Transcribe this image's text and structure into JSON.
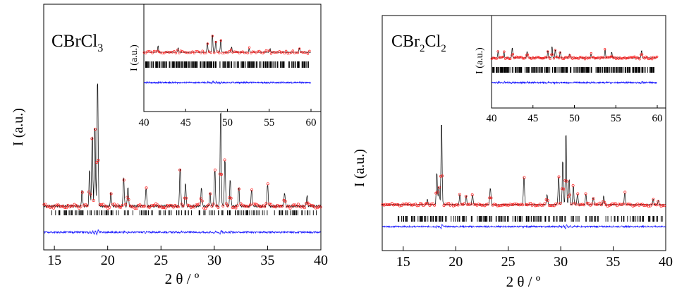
{
  "colors": {
    "observed": "#ff2020",
    "calculated": "#000000",
    "difference": "#1a1aff",
    "ticks": "#000000"
  },
  "chart_data": [
    {
      "type": "line",
      "compound_main": "CBrCl",
      "compound_sub": "3",
      "xlabel_main": "2 θ",
      "xlabel_unit": " / º",
      "ylabel": "I (a.u.)",
      "xlim": [
        14,
        40
      ],
      "xticks": [
        "15",
        "20",
        "25",
        "30",
        "35",
        "40"
      ],
      "peaks": [
        {
          "x": 17.6,
          "h": 0.12
        },
        {
          "x": 18.3,
          "h": 0.28
        },
        {
          "x": 18.55,
          "h": 0.55
        },
        {
          "x": 18.8,
          "h": 0.62
        },
        {
          "x": 19.05,
          "h": 0.98
        },
        {
          "x": 20.3,
          "h": 0.1
        },
        {
          "x": 21.5,
          "h": 0.22
        },
        {
          "x": 21.9,
          "h": 0.15
        },
        {
          "x": 23.6,
          "h": 0.14
        },
        {
          "x": 26.8,
          "h": 0.3
        },
        {
          "x": 27.3,
          "h": 0.18
        },
        {
          "x": 28.8,
          "h": 0.14
        },
        {
          "x": 29.6,
          "h": 0.1
        },
        {
          "x": 30.05,
          "h": 0.28
        },
        {
          "x": 30.6,
          "h": 0.74
        },
        {
          "x": 31.0,
          "h": 0.36
        },
        {
          "x": 31.5,
          "h": 0.2
        },
        {
          "x": 32.3,
          "h": 0.14
        },
        {
          "x": 33.5,
          "h": 0.12
        },
        {
          "x": 35.0,
          "h": 0.16
        },
        {
          "x": 36.6,
          "h": 0.1
        },
        {
          "x": 38.7,
          "h": 0.08
        }
      ],
      "inset": {
        "ylabel": "I (a.u.)",
        "xlim": [
          40,
          60
        ],
        "xticks": [
          "40",
          "45",
          "50",
          "55",
          "60"
        ],
        "peaks": [
          {
            "x": 41.7,
            "h": 0.22
          },
          {
            "x": 44.1,
            "h": 0.15
          },
          {
            "x": 47.6,
            "h": 0.35
          },
          {
            "x": 48.2,
            "h": 0.62
          },
          {
            "x": 48.6,
            "h": 0.4
          },
          {
            "x": 49.2,
            "h": 0.45
          },
          {
            "x": 50.5,
            "h": 0.18
          },
          {
            "x": 52.6,
            "h": 0.12
          },
          {
            "x": 55.1,
            "h": 0.12
          },
          {
            "x": 58.6,
            "h": 0.15
          }
        ]
      }
    },
    {
      "type": "line",
      "compound_main": "CBr",
      "compound_sub1": "2",
      "compound_mid": "Cl",
      "compound_sub2": "2",
      "xlabel_main": "2 θ",
      "xlabel_unit": " / º",
      "ylabel": "I (a.u.)",
      "xlim": [
        13,
        40
      ],
      "xticks": [
        "15",
        "20",
        "25",
        "30",
        "35",
        "40"
      ],
      "peaks": [
        {
          "x": 17.3,
          "h": 0.06
        },
        {
          "x": 18.2,
          "h": 0.38
        },
        {
          "x": 18.4,
          "h": 0.22
        },
        {
          "x": 18.65,
          "h": 0.98
        },
        {
          "x": 20.4,
          "h": 0.12
        },
        {
          "x": 21.0,
          "h": 0.1
        },
        {
          "x": 21.6,
          "h": 0.12
        },
        {
          "x": 23.3,
          "h": 0.2
        },
        {
          "x": 26.5,
          "h": 0.33
        },
        {
          "x": 28.7,
          "h": 0.12
        },
        {
          "x": 29.8,
          "h": 0.33
        },
        {
          "x": 30.2,
          "h": 0.52
        },
        {
          "x": 30.5,
          "h": 0.85
        },
        {
          "x": 30.8,
          "h": 0.3
        },
        {
          "x": 31.2,
          "h": 0.22
        },
        {
          "x": 31.6,
          "h": 0.13
        },
        {
          "x": 32.4,
          "h": 0.12
        },
        {
          "x": 33.1,
          "h": 0.08
        },
        {
          "x": 34.1,
          "h": 0.1
        },
        {
          "x": 36.1,
          "h": 0.14
        },
        {
          "x": 38.8,
          "h": 0.06
        },
        {
          "x": 39.3,
          "h": 0.05
        }
      ],
      "inset": {
        "ylabel": "I (a.u.)",
        "xlim": [
          40,
          60
        ],
        "xticks": [
          "40",
          "45",
          "50",
          "55",
          "60"
        ],
        "peaks": [
          {
            "x": 40.8,
            "h": 0.35
          },
          {
            "x": 41.5,
            "h": 0.32
          },
          {
            "x": 42.5,
            "h": 0.55
          },
          {
            "x": 44.3,
            "h": 0.35
          },
          {
            "x": 46.8,
            "h": 0.4
          },
          {
            "x": 47.3,
            "h": 0.62
          },
          {
            "x": 47.7,
            "h": 0.45
          },
          {
            "x": 48.3,
            "h": 0.35
          },
          {
            "x": 49.4,
            "h": 0.22
          },
          {
            "x": 52.0,
            "h": 0.22
          },
          {
            "x": 53.7,
            "h": 0.45
          },
          {
            "x": 54.5,
            "h": 0.32
          },
          {
            "x": 58.1,
            "h": 0.4
          }
        ]
      }
    }
  ]
}
